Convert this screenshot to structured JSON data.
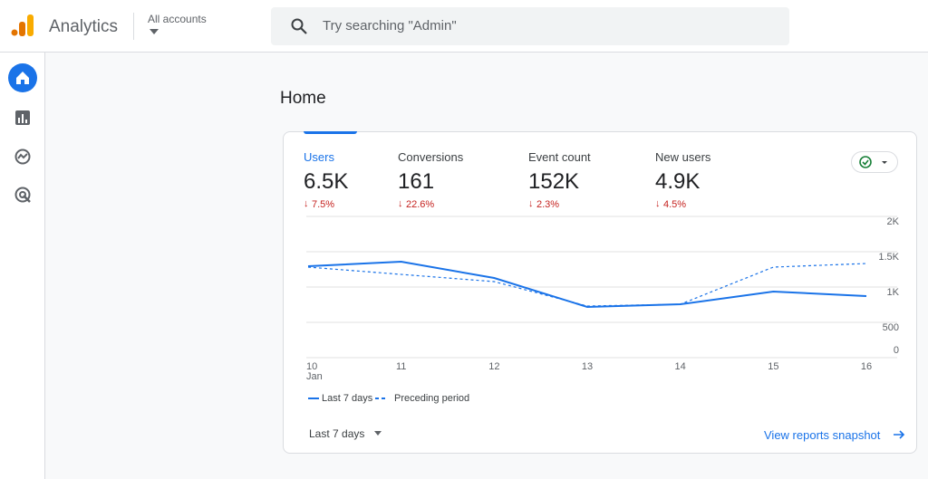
{
  "header": {
    "product": "Analytics",
    "account_label": "All accounts",
    "search_placeholder": "Try searching \"Admin\""
  },
  "page_title": "Home",
  "metrics": [
    {
      "label": "Users",
      "value": "6.5K",
      "change": "7.5%"
    },
    {
      "label": "Conversions",
      "value": "161",
      "change": "22.6%"
    },
    {
      "label": "Event count",
      "value": "152K",
      "change": "2.3%"
    },
    {
      "label": "New users",
      "value": "4.9K",
      "change": "4.5%"
    }
  ],
  "chart_data": {
    "type": "line",
    "categories": [
      "10",
      "11",
      "12",
      "13",
      "14",
      "15",
      "16"
    ],
    "x_sublabel": "Jan",
    "series": [
      {
        "name": "Last 7 days",
        "color": "#1a73e8",
        "dashed": false,
        "values": [
          1295,
          1359,
          1128,
          718,
          756,
          936,
          872
        ]
      },
      {
        "name": "Preceding period",
        "color": "#1a73e8",
        "dashed": true,
        "values": [
          1282,
          1179,
          1077,
          731,
          756,
          1282,
          1333
        ]
      }
    ],
    "ylim": [
      0,
      2000
    ],
    "yticks": [
      0,
      500,
      {
        "value": 1000,
        "label": "1K"
      },
      {
        "value": 1500,
        "label": "1.5K"
      },
      {
        "value": 2000,
        "label": "2K"
      }
    ],
    "grid": true
  },
  "footer": {
    "range": "Last 7 days",
    "link": "View reports snapshot"
  }
}
